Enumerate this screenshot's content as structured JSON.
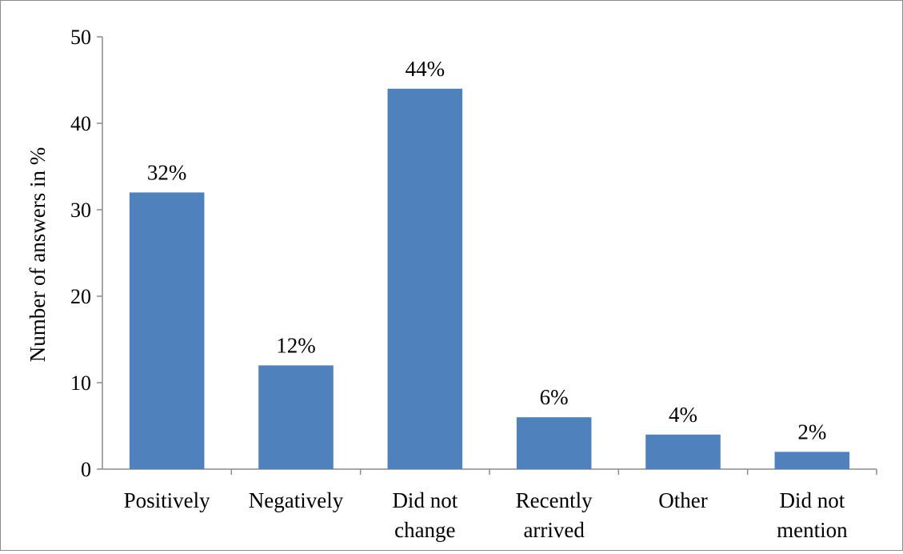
{
  "chart_data": {
    "type": "bar",
    "title": "",
    "xlabel": "",
    "ylabel": "Number of answers in %",
    "ylim": [
      0,
      50
    ],
    "yticks": [
      "0",
      "10",
      "20",
      "30",
      "40",
      "50"
    ],
    "grid": false,
    "legend": "none",
    "bar_color": "#4F81BD",
    "categories": [
      [
        "Positively"
      ],
      [
        "Negatively"
      ],
      [
        "Did not",
        "change"
      ],
      [
        "Recently",
        "arrived"
      ],
      [
        "Other"
      ],
      [
        "Did not",
        "mention"
      ]
    ],
    "values": [
      32,
      12,
      44,
      6,
      4,
      2
    ],
    "data_labels": [
      "32%",
      "12%",
      "44%",
      "6%",
      "4%",
      "2%"
    ]
  }
}
